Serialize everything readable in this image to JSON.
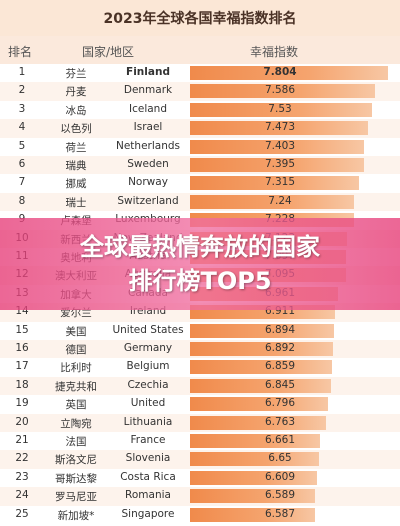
{
  "chart_data": {
    "type": "bar",
    "title": "2023年全球各国幸福指数排名",
    "columns": [
      "排名",
      "国家/地区",
      "幸福指数"
    ],
    "rows": [
      {
        "rank": "1",
        "cn": "芬兰",
        "en": "Finland",
        "value": 7.804
      },
      {
        "rank": "2",
        "cn": "丹麦",
        "en": "Denmark",
        "value": 7.586
      },
      {
        "rank": "3",
        "cn": "冰岛",
        "en": "Iceland",
        "value": 7.53
      },
      {
        "rank": "4",
        "cn": "以色列",
        "en": "Israel",
        "value": 7.473
      },
      {
        "rank": "5",
        "cn": "荷兰",
        "en": "Netherlands",
        "value": 7.403
      },
      {
        "rank": "6",
        "cn": "瑞典",
        "en": "Sweden",
        "value": 7.395
      },
      {
        "rank": "7",
        "cn": "挪威",
        "en": "Norway",
        "value": 7.315
      },
      {
        "rank": "8",
        "cn": "瑞士",
        "en": "Switzerland",
        "value": 7.24
      },
      {
        "rank": "9",
        "cn": "卢森堡",
        "en": "Luxembourg",
        "value": 7.228
      },
      {
        "rank": "10",
        "cn": "新西兰",
        "en": "New Zealand",
        "value": 7.123
      },
      {
        "rank": "11",
        "cn": "奥地利",
        "en": "Austria",
        "value": 7.097
      },
      {
        "rank": "12",
        "cn": "澳大利亚",
        "en": "Australia",
        "value": 7.095
      },
      {
        "rank": "13",
        "cn": "加拿大",
        "en": "Canada",
        "value": 6.961
      },
      {
        "rank": "14",
        "cn": "爱尔兰",
        "en": "Ireland",
        "value": 6.911
      },
      {
        "rank": "15",
        "cn": "美国",
        "en": "United States",
        "value": 6.894
      },
      {
        "rank": "16",
        "cn": "德国",
        "en": "Germany",
        "value": 6.892
      },
      {
        "rank": "17",
        "cn": "比利时",
        "en": "Belgium",
        "value": 6.859
      },
      {
        "rank": "18",
        "cn": "捷克共和",
        "en": "Czechia",
        "value": 6.845
      },
      {
        "rank": "19",
        "cn": "英国",
        "en": "United",
        "value": 6.796
      },
      {
        "rank": "20",
        "cn": "立陶宛",
        "en": "Lithuania",
        "value": 6.763
      },
      {
        "rank": "21",
        "cn": "法国",
        "en": "France",
        "value": 6.661
      },
      {
        "rank": "22",
        "cn": "斯洛文尼",
        "en": "Slovenia",
        "value": 6.65
      },
      {
        "rank": "23",
        "cn": "哥斯达黎",
        "en": "Costa Rica",
        "value": 6.609
      },
      {
        "rank": "24",
        "cn": "罗马尼亚",
        "en": "Romania",
        "value": 6.589
      },
      {
        "rank": "25",
        "cn": "新加坡*",
        "en": "Singapore",
        "value": 6.587
      }
    ]
  },
  "banner": {
    "line1": "全球最热情奔放的国家",
    "line2": "排行榜TOP5"
  },
  "colors": {
    "bar": "#f08a4b",
    "header_bg": "#fbe9dc",
    "banner": "#e63c78"
  }
}
